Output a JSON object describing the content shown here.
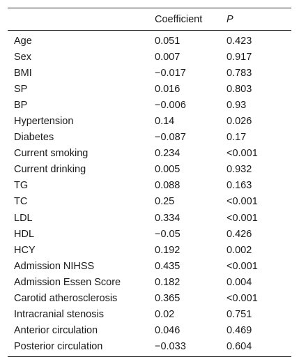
{
  "table": {
    "headers": [
      "",
      "Coefficient",
      "P"
    ],
    "rows": [
      {
        "variable": "Age",
        "coefficient": "0.051",
        "p": "0.423"
      },
      {
        "variable": "Sex",
        "coefficient": "0.007",
        "p": "0.917"
      },
      {
        "variable": "BMI",
        "coefficient": "−0.017",
        "p": "0.783"
      },
      {
        "variable": "SP",
        "coefficient": "0.016",
        "p": "0.803"
      },
      {
        "variable": "BP",
        "coefficient": "−0.006",
        "p": "0.93"
      },
      {
        "variable": "Hypertension",
        "coefficient": "0.14",
        "p": "0.026"
      },
      {
        "variable": "Diabetes",
        "coefficient": "−0.087",
        "p": "0.17"
      },
      {
        "variable": "Current smoking",
        "coefficient": "0.234",
        "p": "<0.001"
      },
      {
        "variable": "Current drinking",
        "coefficient": "0.005",
        "p": "0.932"
      },
      {
        "variable": "TG",
        "coefficient": "0.088",
        "p": "0.163"
      },
      {
        "variable": "TC",
        "coefficient": "0.25",
        "p": "<0.001"
      },
      {
        "variable": "LDL",
        "coefficient": "0.334",
        "p": "<0.001"
      },
      {
        "variable": "HDL",
        "coefficient": "−0.05",
        "p": "0.426"
      },
      {
        "variable": "HCY",
        "coefficient": "0.192",
        "p": "0.002"
      },
      {
        "variable": "Admission NIHSS",
        "coefficient": "0.435",
        "p": "<0.001"
      },
      {
        "variable": "Admission Essen Score",
        "coefficient": "0.182",
        "p": "0.004"
      },
      {
        "variable": "Carotid atherosclerosis",
        "coefficient": "0.365",
        "p": "<0.001"
      },
      {
        "variable": "Intracranial stenosis",
        "coefficient": "0.02",
        "p": "0.751"
      },
      {
        "variable": "Anterior circulation",
        "coefficient": "0.046",
        "p": "0.469"
      },
      {
        "variable": "Posterior circulation",
        "coefficient": "−0.033",
        "p": "0.604"
      }
    ]
  }
}
